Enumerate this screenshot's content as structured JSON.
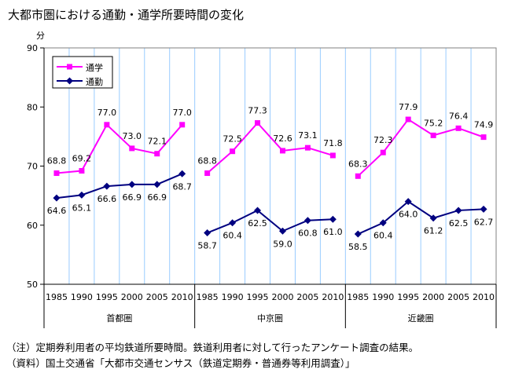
{
  "title": "大都市圏における通勤・通学所要時間の変化",
  "notes": [
    "（注）定期券利用者の平均鉄道所要時間。鉄道利用者に対して行ったアンケート調査の結果。",
    "（資料）国土交通省「大都市交通センサス（鉄道定期券・普通券等利用調査）」"
  ],
  "chart_data": {
    "type": "line",
    "title": "大都市圏における通勤・通学所要時間の変化",
    "ylabel": "分",
    "ylim": [
      50,
      90
    ],
    "yticks": [
      "50",
      "60",
      "70",
      "80",
      "90"
    ],
    "grid": "vertical",
    "legend_position": "top-left",
    "groups": [
      {
        "name": "首都圏",
        "categories": [
          "1985",
          "1990",
          "1995",
          "2000",
          "2005",
          "2010"
        ]
      },
      {
        "name": "中京圏",
        "categories": [
          "1985",
          "1990",
          "1995",
          "2000",
          "2005",
          "2010"
        ]
      },
      {
        "name": "近畿圏",
        "categories": [
          "1985",
          "1990",
          "1995",
          "2000",
          "2005",
          "2010"
        ]
      }
    ],
    "series": [
      {
        "name": "通学",
        "color": "#FF00FF",
        "marker": "square",
        "values": [
          [
            68.8,
            69.2,
            77.0,
            73.0,
            72.1,
            77.0
          ],
          [
            68.8,
            72.5,
            77.3,
            72.6,
            73.1,
            71.8
          ],
          [
            68.3,
            72.3,
            77.9,
            75.2,
            76.4,
            74.9
          ]
        ]
      },
      {
        "name": "通勤",
        "color": "#000080",
        "marker": "diamond",
        "values": [
          [
            64.6,
            65.1,
            66.6,
            66.9,
            66.9,
            68.7
          ],
          [
            58.7,
            60.4,
            62.5,
            59.0,
            60.8,
            61.0
          ],
          [
            58.5,
            60.4,
            64.0,
            61.2,
            62.5,
            62.7
          ]
        ]
      }
    ]
  }
}
